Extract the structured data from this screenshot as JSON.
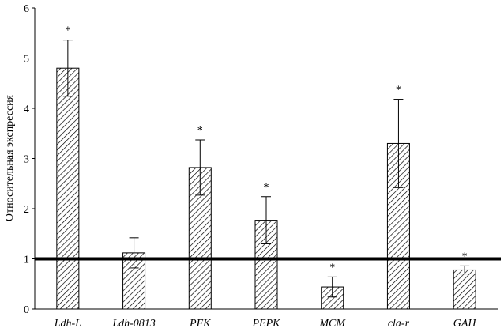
{
  "chart_data": {
    "type": "bar",
    "title": "",
    "xlabel": "",
    "ylabel": "Относительная  экспрессия",
    "ylim": [
      0,
      6
    ],
    "yticks": [
      0,
      1,
      2,
      3,
      4,
      5,
      6
    ],
    "grid": false,
    "categories": [
      "Ldh-L",
      "Ldh-0813",
      "PFK",
      "PEPK",
      "MCM",
      "cla-r",
      "GAH"
    ],
    "values": [
      4.8,
      1.12,
      2.82,
      1.77,
      0.44,
      3.3,
      0.78
    ],
    "error": [
      0.56,
      0.3,
      0.55,
      0.47,
      0.2,
      0.88,
      0.08
    ],
    "significant": [
      true,
      false,
      true,
      true,
      true,
      true,
      true
    ],
    "significance_marker": "*",
    "reference_line": 1,
    "bar_pattern": "diagonal-hatch",
    "colors": {
      "bar_stroke": "#000000",
      "hatch": "#000000",
      "background": "#ffffff"
    }
  }
}
